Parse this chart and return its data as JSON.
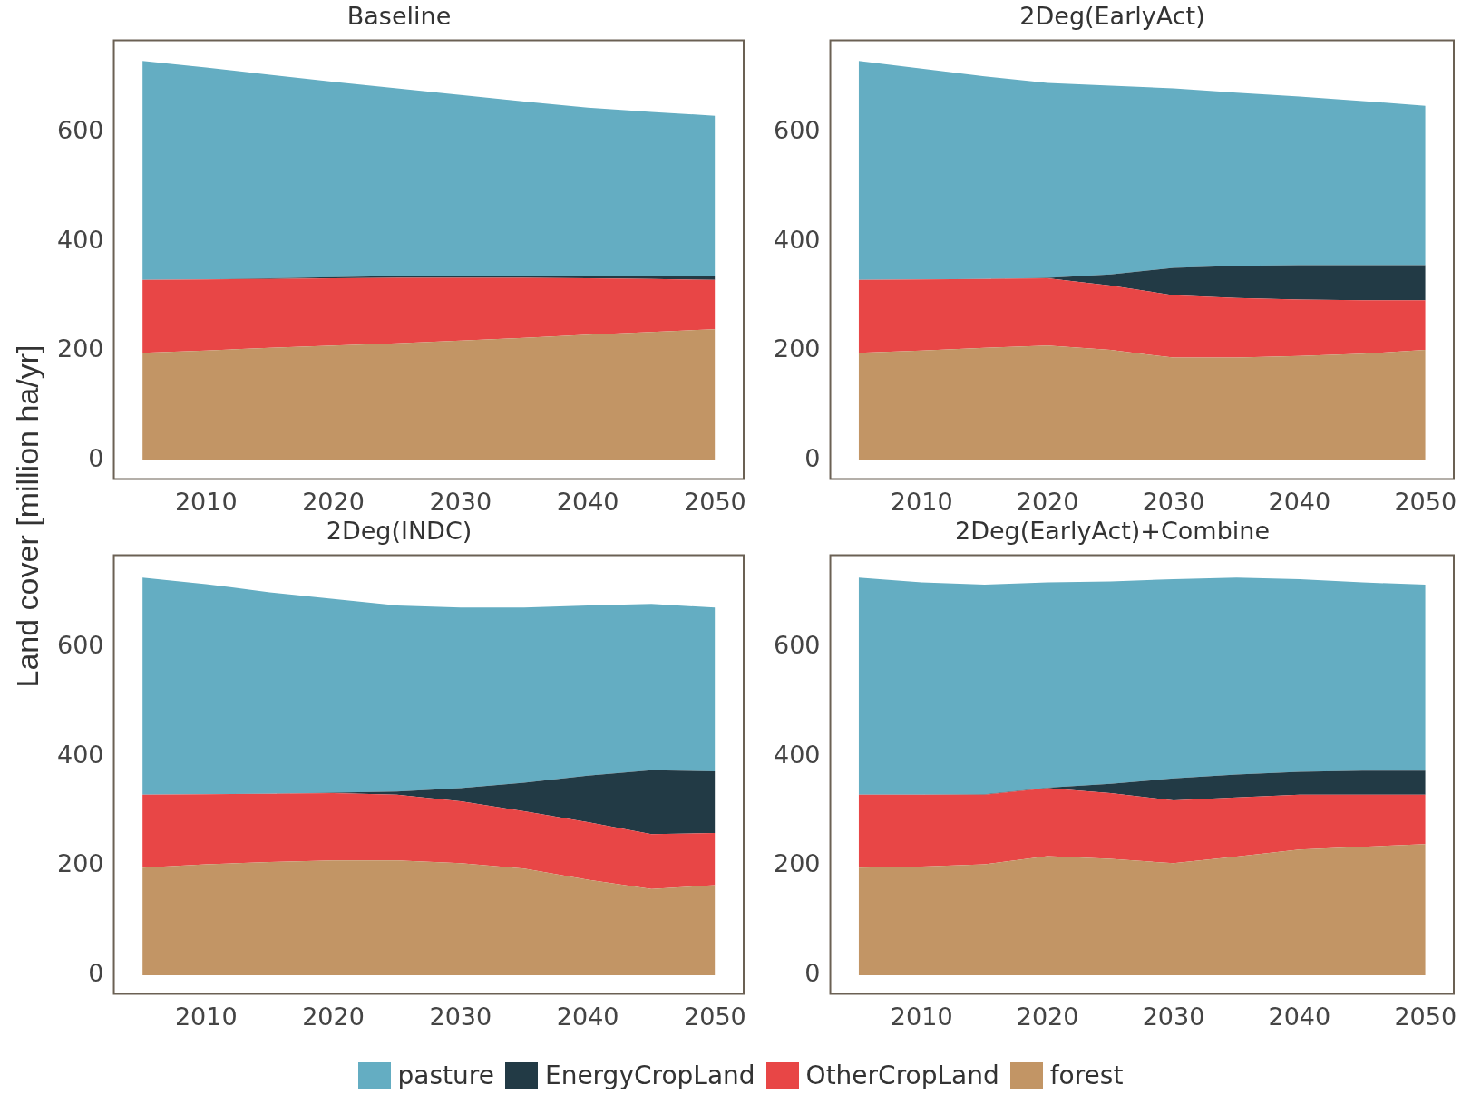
{
  "chart_data": [
    {
      "type": "area",
      "title": "Baseline",
      "ylabel": "Land cover [million ha/yr]",
      "stacked": true,
      "legend": "bottom",
      "x": [
        2005,
        2010,
        2015,
        2020,
        2025,
        2030,
        2035,
        2040,
        2045,
        2050
      ],
      "xlim": [
        2002.75,
        2052.25
      ],
      "xticks": [
        2010,
        2020,
        2030,
        2040,
        2050
      ],
      "ylim": [
        -34,
        768
      ],
      "yticks": [
        0,
        200,
        400,
        600
      ],
      "series": [
        {
          "name": "forest",
          "color": "#c29565",
          "values": [
            197,
            201,
            206,
            210,
            214,
            219,
            224,
            230,
            235,
            240
          ]
        },
        {
          "name": "OtherCropLand",
          "color": "#e84646",
          "values": [
            133,
            130,
            126,
            123,
            120,
            115,
            110,
            103,
            97,
            90
          ]
        },
        {
          "name": "EnergyCropLand",
          "color": "#223a45",
          "values": [
            0,
            0,
            1,
            2,
            3,
            4,
            4,
            5,
            6,
            8
          ]
        },
        {
          "name": "pasture",
          "color": "#64adc2",
          "values": [
            400,
            387,
            372,
            357,
            343,
            330,
            318,
            307,
            299,
            292
          ]
        }
      ]
    },
    {
      "type": "area",
      "title": "2Deg(EarlyAct)",
      "stacked": true,
      "x": [
        2005,
        2010,
        2015,
        2020,
        2025,
        2030,
        2035,
        2040,
        2045,
        2050
      ],
      "xlim": [
        2002.75,
        2052.25
      ],
      "xticks": [
        2010,
        2020,
        2030,
        2040,
        2050
      ],
      "ylim": [
        -34,
        768
      ],
      "yticks": [
        0,
        200,
        400,
        600
      ],
      "series": [
        {
          "color": "#c29565",
          "values": [
            197,
            201,
            206,
            210,
            202,
            188,
            188,
            191,
            195,
            202
          ]
        },
        {
          "color": "#e84646",
          "values": [
            133,
            130,
            126,
            123,
            118,
            114,
            109,
            103,
            98,
            91
          ]
        },
        {
          "color": "#223a45",
          "values": [
            0,
            0,
            0,
            1,
            20,
            50,
            59,
            63,
            64,
            64
          ]
        },
        {
          "color": "#64adc2",
          "values": [
            400,
            385,
            370,
            356,
            345,
            328,
            316,
            308,
            300,
            291
          ]
        }
      ]
    },
    {
      "type": "area",
      "title": "2Deg(INDC)",
      "stacked": true,
      "x": [
        2005,
        2010,
        2015,
        2020,
        2025,
        2030,
        2035,
        2040,
        2045,
        2050
      ],
      "xlim": [
        2002.75,
        2052.25
      ],
      "xticks": [
        2010,
        2020,
        2030,
        2040,
        2050
      ],
      "ylim": [
        -34,
        768
      ],
      "yticks": [
        0,
        200,
        400,
        600
      ],
      "series": [
        {
          "color": "#c29565",
          "values": [
            197,
            203,
            207,
            210,
            210,
            205,
            195,
            175,
            158,
            165
          ]
        },
        {
          "color": "#e84646",
          "values": [
            133,
            128,
            125,
            123,
            120,
            113,
            105,
            105,
            100,
            95
          ]
        },
        {
          "color": "#223a45",
          "values": [
            0,
            0,
            0,
            1,
            6,
            24,
            52,
            85,
            117,
            113
          ]
        },
        {
          "color": "#64adc2",
          "values": [
            397,
            384,
            368,
            354,
            340,
            330,
            320,
            311,
            304,
            299
          ]
        }
      ]
    },
    {
      "type": "area",
      "title": "2Deg(EarlyAct)+Combine",
      "stacked": true,
      "x": [
        2005,
        2010,
        2015,
        2020,
        2025,
        2030,
        2035,
        2040,
        2045,
        2050
      ],
      "xlim": [
        2002.75,
        2052.25
      ],
      "xticks": [
        2010,
        2020,
        2030,
        2040,
        2050
      ],
      "ylim": [
        -34,
        768
      ],
      "yticks": [
        0,
        200,
        400,
        600
      ],
      "series": [
        {
          "color": "#c29565",
          "values": [
            197,
            199,
            203,
            218,
            213,
            205,
            217,
            230,
            235,
            240
          ]
        },
        {
          "color": "#e84646",
          "values": [
            133,
            131,
            127,
            124,
            120,
            115,
            108,
            100,
            95,
            90
          ]
        },
        {
          "color": "#223a45",
          "values": [
            0,
            0,
            1,
            1,
            17,
            40,
            42,
            42,
            44,
            44
          ]
        },
        {
          "color": "#64adc2",
          "values": [
            397,
            388,
            383,
            375,
            370,
            364,
            360,
            352,
            344,
            340
          ]
        }
      ]
    }
  ]
}
